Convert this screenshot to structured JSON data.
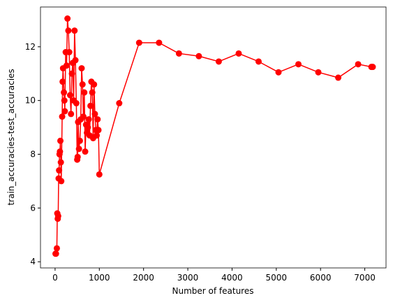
{
  "chart_data": {
    "type": "line",
    "xlabel": "Number of features",
    "ylabel": "train_accuracies-test_accuracies",
    "color": "#ff0000",
    "x": [
      10,
      20,
      40,
      50,
      60,
      70,
      80,
      90,
      100,
      110,
      120,
      130,
      140,
      160,
      170,
      180,
      200,
      210,
      220,
      240,
      260,
      280,
      300,
      320,
      340,
      360,
      380,
      400,
      420,
      440,
      460,
      480,
      500,
      510,
      520,
      540,
      560,
      580,
      600,
      620,
      640,
      660,
      680,
      700,
      720,
      740,
      760,
      780,
      800,
      820,
      840,
      860,
      880,
      900,
      920,
      940,
      960,
      980,
      1000,
      1450,
      1900,
      2350,
      2800,
      3250,
      3700,
      4150,
      4600,
      5050,
      5500,
      5950,
      6400,
      6850,
      7150,
      7180
    ],
    "values": [
      4.3,
      4.3,
      4.5,
      5.8,
      5.6,
      5.7,
      7.1,
      7.4,
      8.0,
      8.1,
      8.5,
      7.7,
      7.0,
      9.4,
      10.7,
      11.2,
      10.3,
      10.0,
      9.6,
      11.8,
      11.3,
      13.05,
      12.6,
      11.8,
      10.2,
      9.5,
      11.0,
      11.4,
      10.0,
      12.6,
      11.5,
      9.9,
      7.8,
      7.9,
      9.2,
      8.2,
      8.5,
      9.3,
      11.2,
      10.6,
      9.4,
      10.3,
      8.1,
      9.1,
      8.8,
      9.0,
      9.3,
      8.7,
      9.8,
      10.7,
      10.3,
      8.6,
      10.6,
      9.5,
      8.9,
      8.7,
      9.3,
      8.9,
      7.25,
      9.9,
      12.15,
      12.15,
      11.75,
      11.65,
      11.45,
      11.75,
      11.45,
      11.05,
      11.35,
      11.05,
      10.85,
      11.35,
      11.25,
      11.25
    ],
    "xlim": [
      -330,
      7480
    ],
    "ylim": [
      3.77,
      13.48
    ],
    "xticks": [
      0,
      1000,
      2000,
      3000,
      4000,
      5000,
      6000,
      7000
    ],
    "yticks": [
      4,
      6,
      8,
      10,
      12
    ]
  }
}
